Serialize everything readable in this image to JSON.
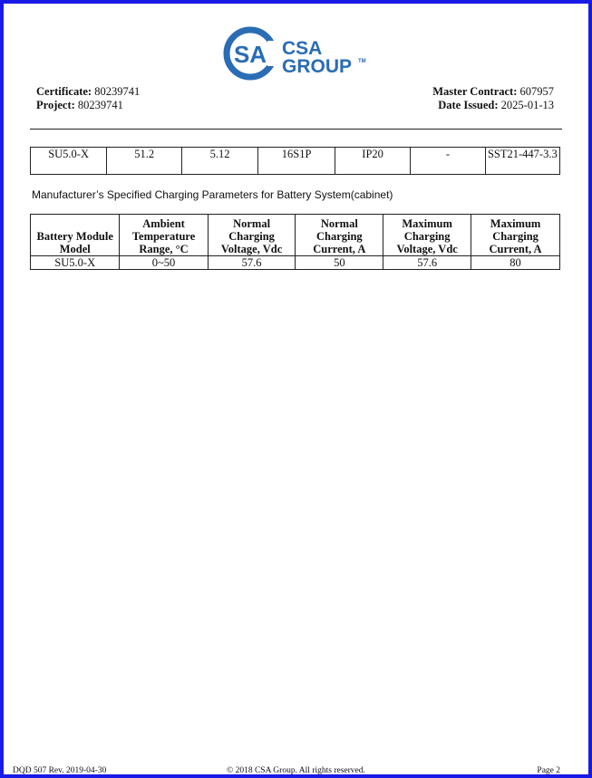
{
  "logo": {
    "text_line1": "CSA",
    "text_line2": "GROUP",
    "trademark": "TM",
    "color": "#2a6db5"
  },
  "header": {
    "certificate_label": "Certificate:",
    "certificate_value": "80239741",
    "project_label": "Project:",
    "project_value": "80239741",
    "master_contract_label": "Master Contract:",
    "master_contract_value": "607957",
    "date_issued_label": "Date Issued:",
    "date_issued_value": "2025-01-13"
  },
  "table1": {
    "rows": [
      [
        "SU5.0-X",
        "51.2",
        "5.12",
        "16S1P",
        "IP20",
        "-",
        "SST21-447-3.3"
      ]
    ]
  },
  "caption": "Manufacturer’s Specified Charging Parameters for Battery System(cabinet)",
  "table2": {
    "headers": [
      "Battery Module Model",
      "Ambient Temperature Range, °C",
      "Normal Charging Voltage, Vdc",
      "Normal Charging Current, A",
      "Maximum Charging Voltage, Vdc",
      "Maximum Charging Current, A"
    ],
    "rows": [
      [
        "SU5.0-X",
        "0~50",
        "57.6",
        "50",
        "57.6",
        "80"
      ]
    ]
  },
  "footer": {
    "form": "DQD 507 Rev. 2019-04-30",
    "copyright": "© 2018 CSA Group.  All rights reserved.",
    "page": "Page 2"
  },
  "colors": {
    "frame": "#1a1ae6"
  }
}
